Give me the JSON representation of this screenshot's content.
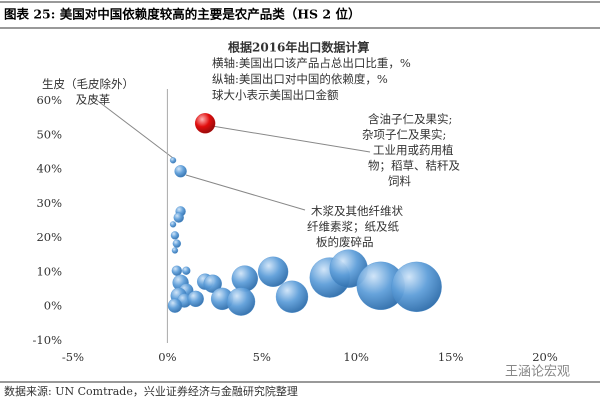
{
  "header": {
    "title": "图表 25: 美国对中国依赖度较高的主要是农产品类（HS 2 位）"
  },
  "chart_data": {
    "type": "bubble",
    "note": [
      "根据2016年出口数据计算",
      "横轴:美国出口该产品占总出口比重，%",
      "纵轴:美国出口对中国的依赖度，%",
      "球大小表示美国出口金额"
    ],
    "annotations": [
      [
        "生皮（毛皮除外）",
        "及皮革"
      ],
      [
        "含油子仁及果实;",
        "杂项子仁及果实;",
        "工业用或药用植",
        "物；稻草、秸秆及",
        "饲料"
      ],
      [
        "木浆及其他纤维状",
        "纤维素浆；纸及纸",
        "板的废碎品"
      ]
    ],
    "series": [
      {
        "color": "#cc0000",
        "x": [
          2.0
        ],
        "values": [
          53.5
        ],
        "sizes": [
          100
        ]
      },
      {
        "color": "#4a8fd0",
        "x": [
          0.3,
          0.7,
          0.7,
          0.6,
          0.3,
          0.4,
          0.5,
          0.4,
          0.5,
          1.0,
          0.7,
          1.0,
          0.6,
          0.9,
          0.4,
          1.5,
          2.0,
          2.4,
          2.9,
          4.1,
          3.9,
          5.6,
          6.6,
          8.6,
          9.6,
          11.3,
          13.2
        ],
        "values": [
          42.7,
          39.5,
          27.8,
          26.0,
          24.0,
          20.8,
          18.4,
          16.4,
          10.5,
          10.5,
          7.0,
          4.7,
          3.2,
          1.8,
          0.3,
          2.3,
          7.3,
          6.7,
          2.3,
          8.2,
          1.5,
          10.2,
          2.9,
          8.5,
          11.1,
          6.1,
          5.8
        ],
        "sizes": [
          9,
          36,
          25,
          25,
          9,
          16,
          16,
          9,
          25,
          16,
          64,
          49,
          64,
          49,
          49,
          64,
          64,
          81,
          121,
          169,
          196,
          225,
          256,
          400,
          361,
          576,
          625
        ]
      }
    ],
    "xlim": [
      -5,
      20
    ],
    "xticks": [
      {
        "value": -5,
        "label": "-5%"
      },
      {
        "value": 0,
        "label": "0%"
      },
      {
        "value": 5,
        "label": "5%"
      },
      {
        "value": 10,
        "label": "10%"
      },
      {
        "value": 15,
        "label": "15%"
      },
      {
        "value": 20,
        "label": "20%"
      }
    ],
    "ylim": [
      -10,
      60
    ],
    "yticks": [
      {
        "value": -10,
        "label": "-10%"
      },
      {
        "value": 0,
        "label": "0%"
      },
      {
        "value": 10,
        "label": "10%"
      },
      {
        "value": 20,
        "label": "20%"
      },
      {
        "value": 30,
        "label": "30%"
      },
      {
        "value": 40,
        "label": "40%"
      },
      {
        "value": 50,
        "label": "50%"
      },
      {
        "value": 60,
        "label": "60%"
      }
    ]
  },
  "footer": {
    "source": "数据来源: UN Comtrade，兴业证券经济与金融研究院整理"
  },
  "watermark": "王涵论宏观"
}
